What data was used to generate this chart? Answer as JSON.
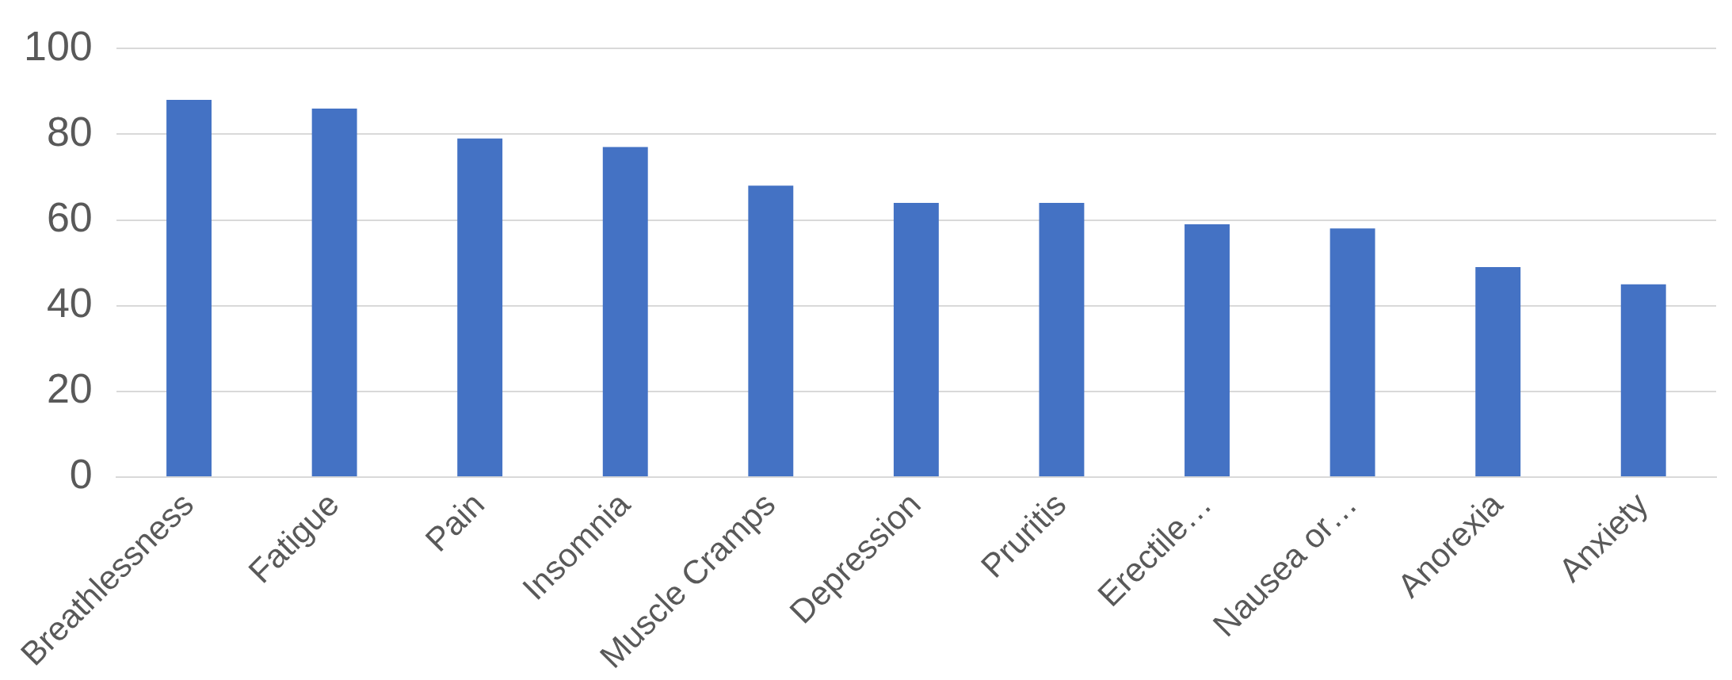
{
  "chart_data": {
    "type": "bar",
    "categories": [
      "Breathlessness",
      "Fatigue",
      "Pain",
      "Insomnia",
      "Muscle Cramps",
      "Depression",
      "Pruritis",
      "Erectile…",
      "Nausea or…",
      "Anorexia",
      "Anxiety"
    ],
    "values": [
      88,
      86,
      79,
      77,
      68,
      64,
      64,
      59,
      58,
      49,
      45
    ],
    "color": "#4472c4",
    "ylim": [
      0,
      100
    ],
    "yticks": [
      0,
      20,
      40,
      60,
      80,
      100
    ],
    "grid": "y",
    "legend": false
  }
}
